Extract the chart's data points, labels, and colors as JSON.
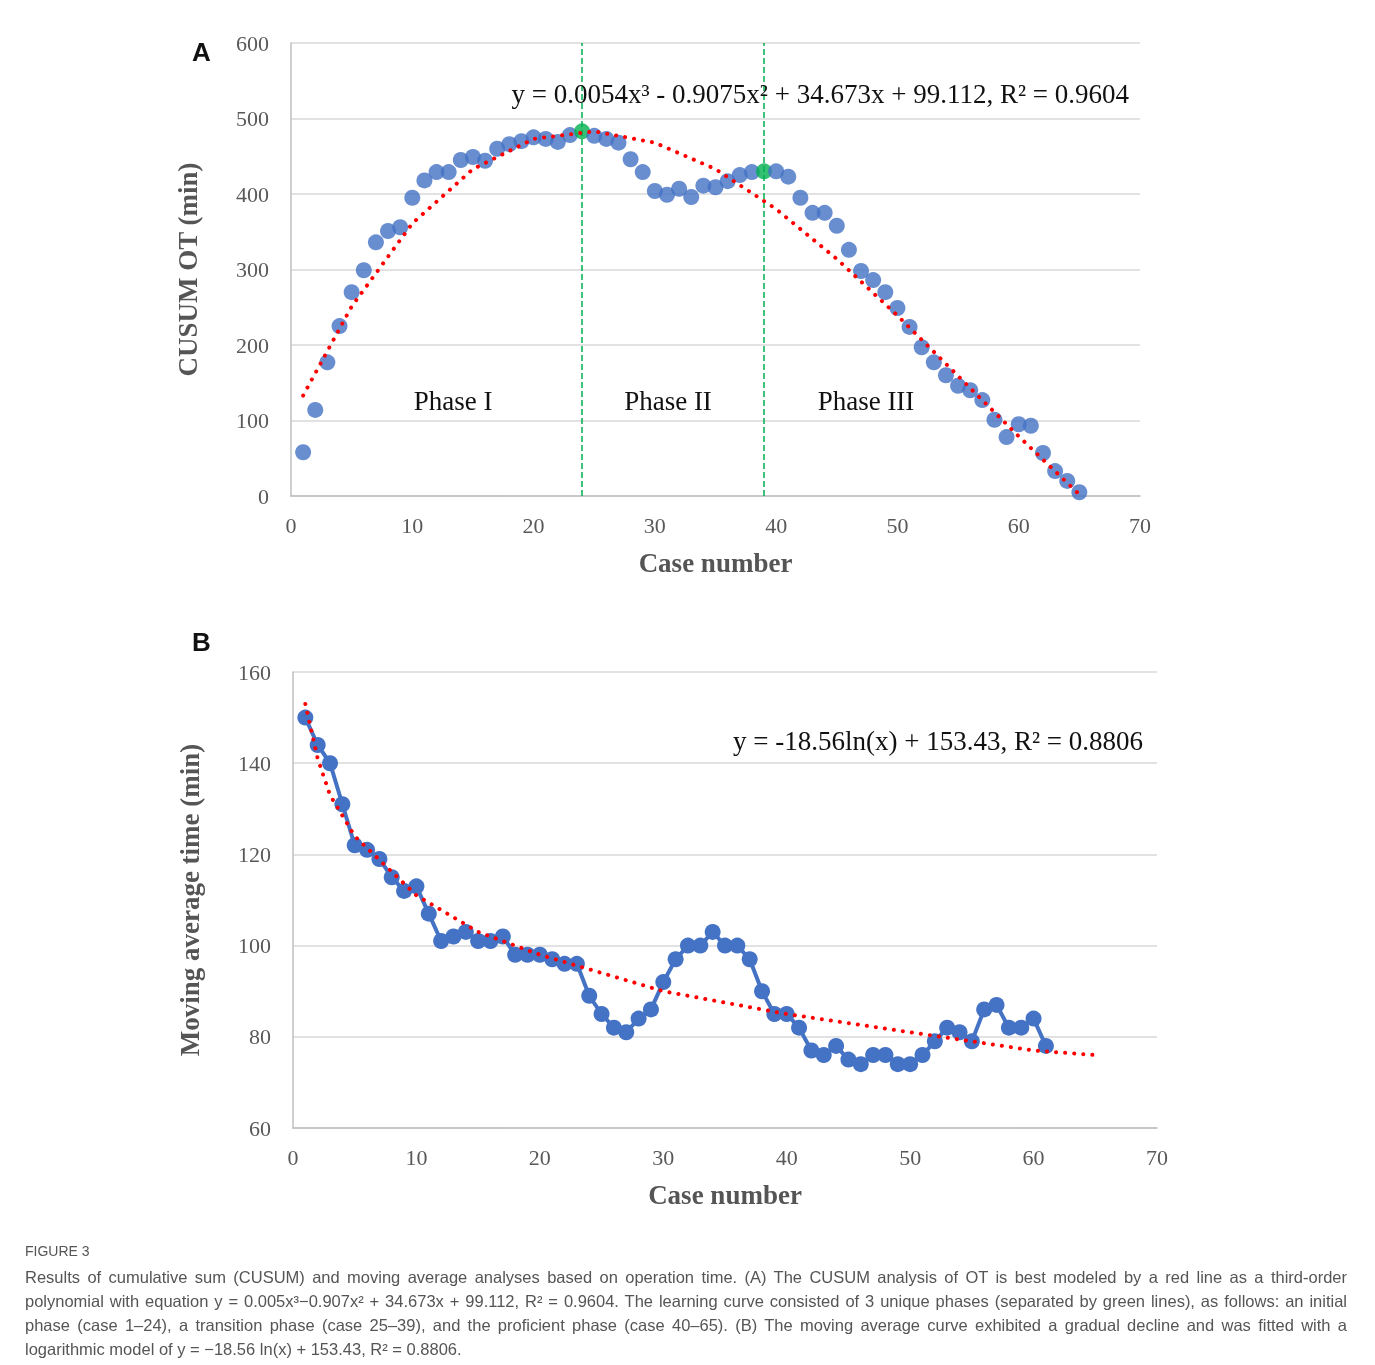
{
  "chart_data": [
    {
      "type": "scatter",
      "xlabel": "Case number",
      "ylabel": "CUSUM OT (min)",
      "xlim": [
        0,
        70
      ],
      "xticks": [
        0,
        10,
        20,
        30,
        40,
        50,
        60,
        70
      ],
      "ylim": [
        0,
        600
      ],
      "yticks": [
        0,
        100,
        200,
        300,
        400,
        500,
        600
      ],
      "grid": "y",
      "marker": "circle",
      "series": [
        {
          "color": "#4472c4",
          "x": [
            1,
            2,
            3,
            4,
            5,
            6,
            7,
            8,
            9,
            10,
            11,
            12,
            13,
            14,
            15,
            16,
            17,
            18,
            19,
            20,
            21,
            22,
            23,
            24,
            25,
            26,
            27,
            28,
            29,
            30,
            31,
            32,
            33,
            34,
            35,
            36,
            37,
            38,
            39,
            40,
            41,
            42,
            43,
            44,
            45,
            46,
            47,
            48,
            49,
            50,
            51,
            52,
            53,
            54,
            55,
            56,
            57,
            58,
            59,
            60,
            61,
            62,
            63,
            64,
            65
          ],
          "values": [
            58,
            114,
            177,
            225,
            270,
            299,
            336,
            351,
            356,
            395,
            418,
            429,
            429,
            445,
            449,
            444,
            460,
            466,
            470,
            475,
            473,
            469,
            478,
            483,
            477,
            473,
            468,
            446,
            429,
            404,
            399,
            407,
            396,
            411,
            409,
            417,
            425,
            429,
            430,
            430,
            423,
            395,
            375,
            375,
            358,
            326,
            298,
            286,
            270,
            249,
            224,
            197,
            177,
            160,
            146,
            140,
            127,
            101,
            78,
            95,
            93,
            57,
            33,
            20,
            5
          ],
          "colors": [
            "#4472c4",
            "#4472c4",
            "#4472c4",
            "#4472c4",
            "#4472c4",
            "#4472c4",
            "#4472c4",
            "#4472c4",
            "#4472c4",
            "#4472c4",
            "#4472c4",
            "#4472c4",
            "#4472c4",
            "#4472c4",
            "#4472c4",
            "#4472c4",
            "#4472c4",
            "#4472c4",
            "#4472c4",
            "#4472c4",
            "#4472c4",
            "#4472c4",
            "#4472c4",
            "#00b050",
            "#4472c4",
            "#4472c4",
            "#4472c4",
            "#4472c4",
            "#4472c4",
            "#4472c4",
            "#4472c4",
            "#4472c4",
            "#4472c4",
            "#4472c4",
            "#4472c4",
            "#4472c4",
            "#4472c4",
            "#4472c4",
            "#00b050",
            "#4472c4",
            "#4472c4",
            "#4472c4",
            "#4472c4",
            "#4472c4",
            "#4472c4",
            "#4472c4",
            "#4472c4",
            "#4472c4",
            "#4472c4",
            "#4472c4",
            "#4472c4",
            "#4472c4",
            "#4472c4",
            "#4472c4",
            "#4472c4",
            "#4472c4",
            "#4472c4",
            "#4472c4",
            "#4472c4",
            "#4472c4",
            "#4472c4",
            "#4472c4",
            "#4472c4",
            "#4472c4",
            "#4472c4"
          ]
        },
        {
          "type": "line",
          "color": "#ff0000",
          "marker": "none",
          "line_style": "dotted",
          "x": [
            1,
            5,
            10,
            15,
            20,
            25,
            30,
            35,
            40,
            45,
            50,
            55,
            60,
            65
          ],
          "values": [
            133,
            251,
            361,
            433,
            473,
            483,
            468,
            433,
            380,
            314,
            239,
            159,
            79,
            2
          ]
        }
      ],
      "ref_lines": [
        {
          "axis": "x",
          "value": 24,
          "color": "#00b050",
          "line_style": "dashed"
        },
        {
          "axis": "x",
          "value": 39,
          "color": "#00b050",
          "line_style": "dashed"
        }
      ],
      "annotations": [
        "A",
        "y = 0.0054x³ - 0.9075x² + 34.673x + 99.112, R² = 0.9604",
        "Phase I",
        "Phase II",
        "Phase III"
      ]
    },
    {
      "type": "line",
      "xlabel": "Case number",
      "ylabel": "Moving average time (min)",
      "xlim": [
        0,
        70
      ],
      "xticks": [
        0,
        10,
        20,
        30,
        40,
        50,
        60,
        70
      ],
      "ylim": [
        60,
        160
      ],
      "yticks": [
        60,
        80,
        100,
        120,
        140,
        160
      ],
      "grid": "y",
      "marker": "circle",
      "line_style": "solid",
      "series": [
        {
          "color": "#4472c4",
          "x": [
            1,
            2,
            3,
            4,
            5,
            6,
            7,
            8,
            9,
            10,
            11,
            12,
            13,
            14,
            15,
            16,
            17,
            18,
            19,
            20,
            21,
            22,
            23,
            24,
            25,
            26,
            27,
            28,
            29,
            30,
            31,
            32,
            33,
            34,
            35,
            36,
            37,
            38,
            39,
            40,
            41,
            42,
            43,
            44,
            45,
            46,
            47,
            48,
            49,
            50,
            51,
            52,
            53,
            54,
            55,
            56,
            57,
            58,
            59,
            60,
            61
          ],
          "values": [
            150,
            144,
            140,
            131,
            122,
            121,
            119,
            115,
            112,
            113,
            107,
            101,
            102,
            103,
            101,
            101,
            102,
            98,
            98,
            98,
            97,
            96,
            96,
            89,
            85,
            82,
            81,
            84,
            86,
            92,
            97,
            100,
            100,
            103,
            100,
            100,
            97,
            90,
            85,
            85,
            82,
            77,
            76,
            78,
            75,
            74,
            76,
            76,
            74,
            74,
            76,
            79,
            82,
            81,
            79,
            86,
            87,
            82,
            82,
            84,
            78
          ]
        },
        {
          "type": "line",
          "color": "#ff0000",
          "marker": "none",
          "line_style": "dotted",
          "x": [
            1,
            2,
            3,
            5,
            10,
            15,
            20,
            25,
            30,
            40,
            50,
            60,
            65
          ],
          "values": [
            153,
            141,
            133,
            124,
            111,
            103,
            98,
            94,
            90,
            85,
            81,
            77,
            76
          ]
        }
      ],
      "annotations": [
        "B",
        "y = -18.56ln(x) + 153.43, R² = 0.8806",
        "FIGURE 3",
        "Results of cumulative sum (CUSUM) and moving average analyses based on operation time. (A) The CUSUM analysis of OT is best modeled by a red line as a third-order polynomial with equation y = 0.005x³−0.907x² + 34.673x + 99.112, R² = 0.9604. The learning curve consisted of 3 unique phases (separated by green lines), as follows: an initial phase (case 1–24), a transition phase (case 25–39), and the proficient phase (case 40–65). (B) The moving average curve exhibited a gradual decline and was fitted with a logarithmic model of y = −18.56 ln(x) + 153.43, R² = 0.8806."
      ]
    }
  ]
}
